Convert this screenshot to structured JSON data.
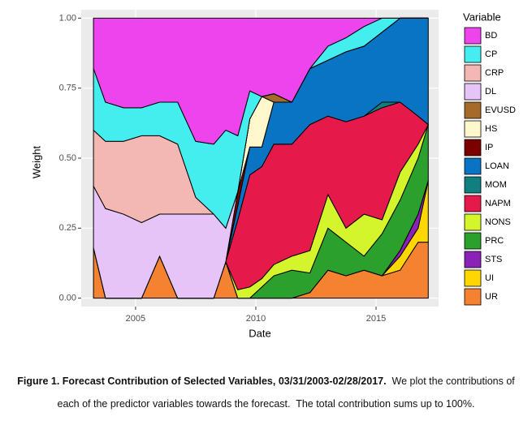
{
  "chart_data": {
    "type": "stacked_area",
    "x_label": "Date",
    "y_label": "Weight",
    "legend_title": "Variable",
    "x": [
      2003.25,
      2003.75,
      2004.5,
      2005.25,
      2006,
      2006.75,
      2007.5,
      2008.25,
      2008.75,
      2009.25,
      2009.75,
      2010.25,
      2010.75,
      2011.5,
      2012.25,
      2013,
      2013.75,
      2014.5,
      2015.25,
      2016,
      2016.75,
      2017.17
    ],
    "xlim": [
      2002.74,
      2017.6
    ],
    "xticks": [
      2005,
      2010,
      2015
    ],
    "ylim": [
      -0.03,
      1.03
    ],
    "yticks": [
      {
        "value": 0,
        "label": "0.00"
      },
      {
        "value": 0.25,
        "label": "0.25"
      },
      {
        "value": 0.5,
        "label": "0.50"
      },
      {
        "value": 0.75,
        "label": "0.75"
      },
      {
        "value": 1,
        "label": "1.00"
      }
    ],
    "grid": true,
    "series": [
      {
        "name": "BD",
        "color": "#ee44ee",
        "values": [
          0.18,
          0.3,
          0.32,
          0.32,
          0.3,
          0.3,
          0.44,
          0.45,
          0.4,
          0.42,
          0.26,
          0.28,
          0.27,
          0.3,
          0.18,
          0.1,
          0.07,
          0.03,
          0,
          0,
          0,
          0
        ]
      },
      {
        "name": "CP",
        "color": "#44eeee",
        "values": [
          0.22,
          0.14,
          0.12,
          0.1,
          0.12,
          0.15,
          0.2,
          0.25,
          0.35,
          0.2,
          0.1,
          0,
          0,
          0,
          0,
          0.05,
          0.05,
          0.07,
          0.05,
          0,
          0,
          0
        ]
      },
      {
        "name": "CRP",
        "color": "#f4b8b4",
        "values": [
          0.2,
          0.24,
          0.26,
          0.31,
          0.28,
          0.25,
          0.06,
          0,
          0,
          0,
          0,
          0,
          0,
          0,
          0,
          0,
          0,
          0,
          0,
          0,
          0,
          0
        ]
      },
      {
        "name": "DL",
        "color": "#e6c4f8",
        "values": [
          0.22,
          0.32,
          0.3,
          0.27,
          0.15,
          0.3,
          0.3,
          0.3,
          0.12,
          0,
          0,
          0,
          0,
          0,
          0,
          0,
          0,
          0,
          0,
          0,
          0,
          0
        ]
      },
      {
        "name": "EVUSD",
        "color": "#a66a2a",
        "values": [
          0,
          0,
          0,
          0,
          0,
          0,
          0,
          0,
          0,
          0,
          0,
          0,
          0.03,
          0,
          0,
          0,
          0,
          0,
          0,
          0,
          0,
          0
        ]
      },
      {
        "name": "HS",
        "color": "#fff8cc",
        "values": [
          0,
          0,
          0,
          0,
          0,
          0,
          0,
          0,
          0,
          0,
          0.1,
          0.18,
          0,
          0,
          0,
          0,
          0,
          0,
          0,
          0,
          0,
          0
        ]
      },
      {
        "name": "IP",
        "color": "#7b0000",
        "values": [
          0,
          0,
          0,
          0,
          0,
          0,
          0,
          0,
          0,
          0.05,
          0,
          0,
          0,
          0,
          0,
          0,
          0,
          0,
          0,
          0,
          0,
          0
        ]
      },
      {
        "name": "LOAN",
        "color": "#0a74c4",
        "values": [
          0,
          0,
          0,
          0,
          0,
          0,
          0,
          0,
          0,
          0.05,
          0.1,
          0.07,
          0.15,
          0.15,
          0.2,
          0.2,
          0.25,
          0.25,
          0.25,
          0.3,
          0.35,
          0.38
        ]
      },
      {
        "name": "MOM",
        "color": "#0f7f7f",
        "values": [
          0,
          0,
          0,
          0,
          0,
          0,
          0,
          0,
          0,
          0,
          0,
          0,
          0,
          0,
          0,
          0,
          0,
          0,
          0.02,
          0,
          0,
          0
        ]
      },
      {
        "name": "NAPM",
        "color": "#e6194b",
        "values": [
          0,
          0,
          0,
          0,
          0,
          0,
          0,
          0,
          0,
          0.25,
          0.4,
          0.4,
          0.43,
          0.4,
          0.45,
          0.28,
          0.38,
          0.35,
          0.4,
          0.25,
          0.1,
          0
        ]
      },
      {
        "name": "NONS",
        "color": "#d4f52c",
        "values": [
          0,
          0,
          0,
          0,
          0,
          0,
          0,
          0,
          0,
          0.03,
          0.04,
          0.03,
          0.04,
          0.05,
          0.08,
          0.12,
          0.05,
          0.15,
          0.05,
          0.1,
          0.05,
          0
        ]
      },
      {
        "name": "PRC",
        "color": "#2ca02c",
        "values": [
          0,
          0,
          0,
          0,
          0,
          0,
          0,
          0,
          0,
          0,
          0,
          0.04,
          0.08,
          0.1,
          0.07,
          0.15,
          0.12,
          0.05,
          0.15,
          0.18,
          0.2,
          0.2
        ]
      },
      {
        "name": "STS",
        "color": "#8b22b8",
        "values": [
          0,
          0,
          0,
          0,
          0,
          0,
          0,
          0,
          0,
          0,
          0,
          0,
          0,
          0,
          0,
          0,
          0,
          0,
          0,
          0.02,
          0.05,
          0
        ]
      },
      {
        "name": "UI",
        "color": "#ffd700",
        "values": [
          0,
          0,
          0,
          0,
          0,
          0,
          0,
          0,
          0,
          0,
          0,
          0,
          0,
          0,
          0,
          0,
          0,
          0,
          0,
          0.05,
          0.05,
          0.22
        ]
      },
      {
        "name": "UR",
        "color": "#f58231",
        "values": [
          0.18,
          0,
          0,
          0,
          0.15,
          0,
          0,
          0,
          0.13,
          0,
          0,
          0,
          0,
          0,
          0.02,
          0.1,
          0.08,
          0.1,
          0.08,
          0.1,
          0.2,
          0.2
        ]
      }
    ]
  },
  "caption": {
    "label": "Figure 1. Forecast Contribution of Selected Variables, 03/31/2003-02/28/2017.",
    "text": "We plot the contributions of each of the predictor variables towards the forecast.  The total contribution sums up to 100%."
  }
}
